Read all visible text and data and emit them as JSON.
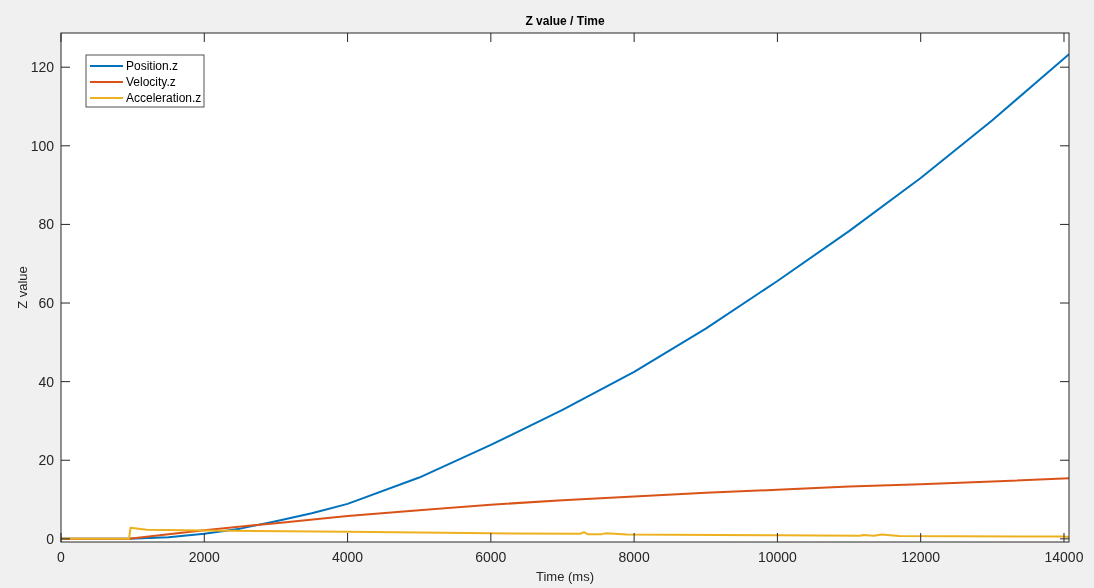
{
  "chart_data": {
    "type": "line",
    "title": "Z value / Time",
    "xlabel": "Time (ms)",
    "ylabel": "Z value",
    "xlim": [
      0,
      14070
    ],
    "ylim": [
      -0.8,
      128.7
    ],
    "xticks": [
      0,
      2000,
      4000,
      6000,
      8000,
      10000,
      12000,
      14000
    ],
    "yticks": [
      0,
      20,
      40,
      60,
      80,
      100,
      120
    ],
    "grid": false,
    "legend": "top left",
    "series": [
      {
        "name": "Position.z",
        "color": "#0072bd",
        "x": [
          0,
          950,
          1500,
          2000,
          2500,
          3000,
          3500,
          4000,
          5000,
          6000,
          7000,
          8000,
          9000,
          10000,
          11000,
          12000,
          13000,
          14070
        ],
        "values": [
          0,
          0,
          0.4,
          1.3,
          2.6,
          4.5,
          6.5,
          8.9,
          15.6,
          23.9,
          32.8,
          42.5,
          53.5,
          65.6,
          78.3,
          91.8,
          106.5,
          123.3
        ]
      },
      {
        "name": "Velocity.z",
        "color": "#d95319",
        "x": [
          0,
          950,
          1500,
          2000,
          3000,
          4000,
          5000,
          6000,
          7000,
          8000,
          9000,
          10000,
          11000,
          12000,
          13000,
          14070
        ],
        "values": [
          0,
          0,
          1.2,
          2.2,
          4.0,
          5.8,
          7.3,
          8.7,
          9.8,
          10.8,
          11.7,
          12.5,
          13.3,
          13.9,
          14.6,
          15.4
        ]
      },
      {
        "name": "Acceleration.z",
        "color": "#edb120",
        "x": [
          0,
          950,
          970,
          1200,
          2000,
          4000,
          6000,
          7250,
          7300,
          7350,
          7550,
          7600,
          7900,
          10000,
          11150,
          11200,
          11350,
          11450,
          11700,
          14000,
          14070
        ],
        "values": [
          0,
          0,
          2.8,
          2.3,
          2.1,
          1.8,
          1.4,
          1.3,
          1.7,
          1.2,
          1.2,
          1.4,
          1.1,
          0.9,
          0.8,
          1.0,
          0.8,
          1.1,
          0.7,
          0.6,
          0.5
        ]
      }
    ]
  }
}
